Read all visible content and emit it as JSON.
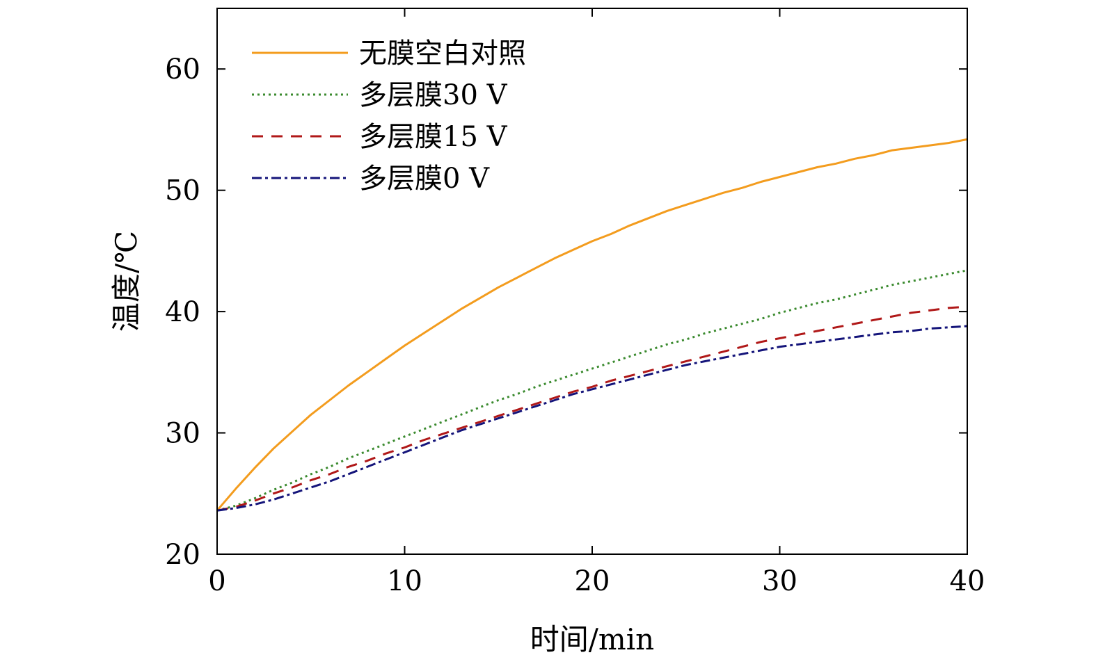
{
  "chart_data": {
    "type": "line",
    "xlabel": "时间/min",
    "ylabel": "温度/℃",
    "xlim": [
      0,
      40
    ],
    "ylim": [
      20,
      65
    ],
    "xticks": [
      0,
      10,
      20,
      30,
      40
    ],
    "yticks": [
      20,
      30,
      40,
      50,
      60
    ],
    "x_tick_labels": [
      "0",
      "10",
      "20",
      "30",
      "40"
    ],
    "y_tick_labels": [
      "20",
      "30",
      "40",
      "50",
      "60"
    ],
    "grid": false,
    "legend_position": "top-left",
    "x": [
      0,
      1,
      2,
      3,
      4,
      5,
      6,
      7,
      8,
      9,
      10,
      11,
      12,
      13,
      14,
      15,
      16,
      17,
      18,
      19,
      20,
      21,
      22,
      23,
      24,
      25,
      26,
      27,
      28,
      29,
      30,
      31,
      32,
      33,
      34,
      35,
      36,
      37,
      38,
      39,
      40
    ],
    "series": [
      {
        "name": "无膜空白对照",
        "color": "#F39C1E",
        "dash": "solid",
        "values": [
          23.6,
          25.4,
          27.1,
          28.7,
          30.1,
          31.5,
          32.7,
          33.9,
          35.0,
          36.1,
          37.2,
          38.2,
          39.2,
          40.2,
          41.1,
          42.0,
          42.8,
          43.6,
          44.4,
          45.1,
          45.8,
          46.4,
          47.1,
          47.7,
          48.3,
          48.8,
          49.3,
          49.8,
          50.2,
          50.7,
          51.1,
          51.5,
          51.9,
          52.2,
          52.6,
          52.9,
          53.3,
          53.5,
          53.7,
          53.9,
          54.2
        ]
      },
      {
        "name": "多层膜30 V",
        "color": "#3A8A2E",
        "dash": "dotted",
        "values": [
          23.6,
          24.0,
          24.6,
          25.3,
          25.9,
          26.6,
          27.2,
          27.9,
          28.5,
          29.1,
          29.7,
          30.3,
          30.9,
          31.5,
          32.1,
          32.7,
          33.2,
          33.8,
          34.3,
          34.8,
          35.3,
          35.8,
          36.3,
          36.8,
          37.3,
          37.7,
          38.2,
          38.6,
          39.0,
          39.4,
          39.9,
          40.3,
          40.7,
          41.0,
          41.4,
          41.8,
          42.2,
          42.5,
          42.8,
          43.1,
          43.4
        ]
      },
      {
        "name": "多层膜15 V",
        "color": "#B01818",
        "dash": "dashed",
        "values": [
          23.6,
          23.9,
          24.4,
          25.0,
          25.5,
          26.1,
          26.6,
          27.2,
          27.7,
          28.3,
          28.8,
          29.4,
          29.9,
          30.4,
          30.9,
          31.4,
          31.9,
          32.4,
          32.9,
          33.4,
          33.8,
          34.3,
          34.7,
          35.1,
          35.5,
          35.9,
          36.3,
          36.7,
          37.1,
          37.5,
          37.8,
          38.1,
          38.4,
          38.7,
          39.0,
          39.3,
          39.6,
          39.9,
          40.1,
          40.3,
          40.4
        ]
      },
      {
        "name": "多层膜0 V",
        "color": "#14147A",
        "dash": "dashdot",
        "values": [
          23.6,
          23.8,
          24.1,
          24.5,
          25.0,
          25.5,
          26.0,
          26.6,
          27.2,
          27.8,
          28.4,
          29.0,
          29.6,
          30.2,
          30.7,
          31.2,
          31.7,
          32.2,
          32.7,
          33.2,
          33.6,
          34.0,
          34.4,
          34.8,
          35.2,
          35.6,
          35.9,
          36.2,
          36.5,
          36.8,
          37.1,
          37.3,
          37.5,
          37.7,
          37.9,
          38.1,
          38.3,
          38.4,
          38.6,
          38.7,
          38.8
        ]
      }
    ]
  }
}
